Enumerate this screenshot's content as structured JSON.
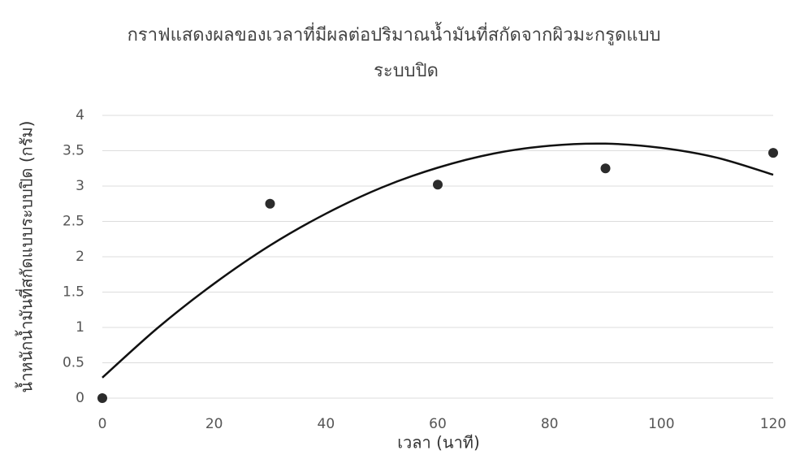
{
  "chart_data": {
    "type": "scatter",
    "title": [
      "กราฟแสดงผลของเวลาที่มีผลต่อปริมาณน้ำมันที่สกัดจากผิวมะกรูดแบบ",
      "ระบบปิด"
    ],
    "x_label": "เวลา (นาที)",
    "y_label": "น้ำหนักน้ำมันที่สกัดแบบระบบปิด (กรัม)",
    "series": [
      {
        "color": "#2b2b2b",
        "x": [
          0,
          30,
          60,
          90,
          120
        ],
        "values": [
          0,
          2.75,
          3.02,
          3.25,
          3.47
        ]
      }
    ],
    "trendline": {
      "color": "#111111",
      "x": [
        0,
        10,
        20,
        30,
        40,
        50,
        60,
        70,
        80,
        90,
        100,
        110,
        120
      ],
      "values": [
        0.29,
        1.0,
        1.62,
        2.16,
        2.61,
        2.98,
        3.26,
        3.46,
        3.57,
        3.6,
        3.54,
        3.4,
        3.16
      ]
    },
    "xlim": [
      0,
      120
    ],
    "xticks": [
      0,
      20,
      40,
      60,
      80,
      100,
      120
    ],
    "ylim": [
      0,
      4
    ],
    "yticks": [
      0,
      0.5,
      1,
      1.5,
      2,
      2.5,
      3,
      3.5,
      4
    ],
    "grid": true
  }
}
